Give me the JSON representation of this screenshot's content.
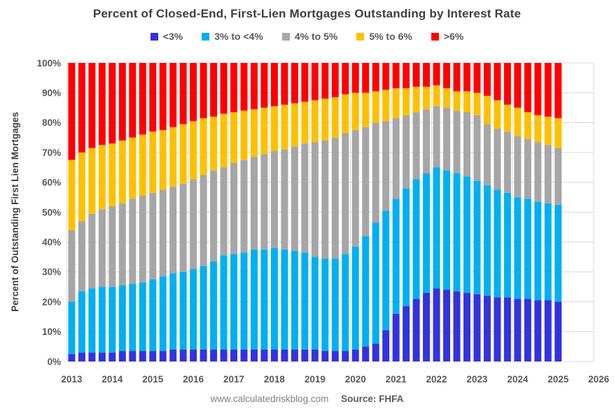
{
  "header": {
    "title": "Percent of Closed-End, First-Lien Mortgages Outstanding by Interest Rate"
  },
  "footer": {
    "site": "www.calculatedriskblog.com",
    "source": "Source: FHFA"
  },
  "colors": {
    "lt3": "#3333DC",
    "r3to4": "#00B0F0",
    "r4to5": "#A6A6A6",
    "r5to6": "#FFC000",
    "gt6": "#FF0000",
    "gridline": "#D9D9D9",
    "axis_text": "#595959",
    "title_text": "#3F3F3F"
  },
  "chart_data": {
    "type": "bar",
    "stacked": true,
    "title": "Percent of Closed-End, First-Lien Mortgages Outstanding by Interest Rate",
    "xlabel": "",
    "ylabel": "Percent of Outstanding First Lien Mortgages",
    "ylim": [
      0,
      100
    ],
    "ytick_step": 10,
    "ytick_suffix": "%",
    "grid": true,
    "legend_position": "top",
    "x_year_ticks": [
      "2013",
      "2014",
      "2015",
      "2016",
      "2017",
      "2018",
      "2019",
      "2020",
      "2021",
      "2022",
      "2023",
      "2024",
      "2025",
      "2026"
    ],
    "categories": [
      "2013 Q1",
      "2013 Q2",
      "2013 Q3",
      "2013 Q4",
      "2014 Q1",
      "2014 Q2",
      "2014 Q3",
      "2014 Q4",
      "2015 Q1",
      "2015 Q2",
      "2015 Q3",
      "2015 Q4",
      "2016 Q1",
      "2016 Q2",
      "2016 Q3",
      "2016 Q4",
      "2017 Q1",
      "2017 Q2",
      "2017 Q3",
      "2017 Q4",
      "2018 Q1",
      "2018 Q2",
      "2018 Q3",
      "2018 Q4",
      "2019 Q1",
      "2019 Q2",
      "2019 Q3",
      "2019 Q4",
      "2020 Q1",
      "2020 Q2",
      "2020 Q3",
      "2020 Q4",
      "2021 Q1",
      "2021 Q2",
      "2021 Q3",
      "2021 Q4",
      "2022 Q1",
      "2022 Q2",
      "2022 Q3",
      "2022 Q4",
      "2023 Q1",
      "2023 Q2",
      "2023 Q3",
      "2023 Q4",
      "2024 Q1",
      "2024 Q2",
      "2024 Q3",
      "2024 Q4",
      "2025 Q1"
    ],
    "series": [
      {
        "name": "<3%",
        "color": "#3333DC",
        "values": [
          2.5,
          3.0,
          3.0,
          3.0,
          3.0,
          3.5,
          3.5,
          3.5,
          3.5,
          3.5,
          4.0,
          4.0,
          4.0,
          4.0,
          4.0,
          4.0,
          4.0,
          4.0,
          4.0,
          4.0,
          4.0,
          4.0,
          4.0,
          4.0,
          4.0,
          3.5,
          3.5,
          3.5,
          4.0,
          5.0,
          6.0,
          10.5,
          16.0,
          18.5,
          21.0,
          23.0,
          24.5,
          24.0,
          23.5,
          23.0,
          22.5,
          22.0,
          21.5,
          21.5,
          21.0,
          21.0,
          20.5,
          20.5,
          20.0
        ]
      },
      {
        "name": "3% to <4%",
        "color": "#00B0F0",
        "values": [
          17.5,
          20.5,
          21.5,
          22.0,
          22.0,
          22.0,
          22.5,
          23.0,
          24.0,
          25.0,
          25.5,
          26.0,
          27.0,
          28.0,
          29.5,
          31.5,
          32.0,
          32.5,
          33.5,
          33.5,
          34.0,
          33.5,
          33.0,
          32.5,
          31.0,
          31.0,
          31.0,
          32.5,
          34.5,
          37.0,
          40.5,
          40.0,
          38.5,
          39.5,
          40.0,
          40.0,
          40.5,
          40.0,
          39.5,
          39.0,
          38.0,
          37.0,
          36.0,
          35.0,
          34.0,
          33.5,
          33.0,
          32.5,
          32.5
        ]
      },
      {
        "name": "4% to 5%",
        "color": "#A6A6A6",
        "values": [
          24.0,
          23.5,
          25.0,
          26.0,
          27.0,
          27.5,
          28.5,
          29.0,
          29.0,
          29.0,
          29.0,
          29.5,
          30.0,
          30.5,
          30.5,
          29.5,
          30.5,
          31.0,
          31.0,
          32.0,
          32.5,
          33.5,
          35.0,
          36.5,
          38.5,
          39.5,
          40.5,
          40.5,
          39.0,
          36.5,
          33.5,
          30.0,
          27.0,
          24.5,
          22.5,
          21.5,
          20.5,
          21.0,
          21.0,
          21.5,
          22.0,
          20.5,
          20.5,
          20.5,
          20.5,
          20.0,
          20.0,
          19.5,
          19.0
        ]
      },
      {
        "name": "5% to 6%",
        "color": "#FFC000",
        "values": [
          23.5,
          23.0,
          22.0,
          21.5,
          21.0,
          21.0,
          20.5,
          20.5,
          20.5,
          20.0,
          20.0,
          20.0,
          19.5,
          19.0,
          18.0,
          18.0,
          17.0,
          16.5,
          16.0,
          15.5,
          15.0,
          15.0,
          14.5,
          14.0,
          14.0,
          14.0,
          13.5,
          13.0,
          12.5,
          11.5,
          10.5,
          10.5,
          10.0,
          9.0,
          8.5,
          7.5,
          7.0,
          6.5,
          6.5,
          7.0,
          7.5,
          9.5,
          9.5,
          9.0,
          9.5,
          9.0,
          9.0,
          9.5,
          10.0
        ]
      },
      {
        "name": ">6%",
        "color": "#FF0000",
        "values": [
          32.5,
          30.0,
          28.5,
          27.5,
          27.0,
          26.0,
          25.0,
          24.0,
          23.0,
          22.5,
          21.5,
          20.5,
          19.5,
          18.5,
          18.0,
          17.0,
          16.5,
          16.0,
          15.5,
          15.0,
          14.5,
          14.0,
          13.5,
          13.0,
          12.5,
          12.0,
          11.5,
          10.5,
          10.0,
          10.0,
          9.5,
          9.0,
          8.5,
          8.5,
          8.0,
          8.0,
          7.5,
          8.5,
          9.5,
          9.5,
          10.0,
          11.0,
          12.5,
          14.0,
          15.0,
          16.5,
          17.5,
          18.0,
          18.5
        ]
      }
    ]
  }
}
